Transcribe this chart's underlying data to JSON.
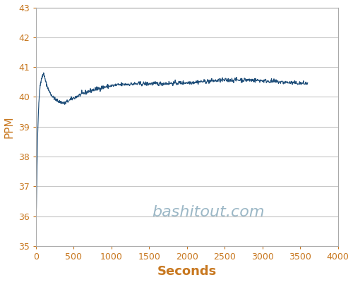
{
  "xlabel": "Seconds",
  "ylabel": "PPM",
  "watermark": "bashitout.com",
  "watermark_color": "#8aabbc",
  "line_color": "#1f4e79",
  "background_color": "#ffffff",
  "grid_color": "#c8c8c8",
  "xlim": [
    0,
    4000
  ],
  "ylim": [
    35,
    43
  ],
  "xticks": [
    0,
    500,
    1000,
    1500,
    2000,
    2500,
    3000,
    3500,
    4000
  ],
  "yticks": [
    35,
    36,
    37,
    38,
    39,
    40,
    41,
    42,
    43
  ],
  "xlabel_fontsize": 13,
  "ylabel_fontsize": 11,
  "tick_fontsize": 9,
  "watermark_fontsize": 16,
  "tick_color": "#c87820",
  "label_color": "#c87820"
}
